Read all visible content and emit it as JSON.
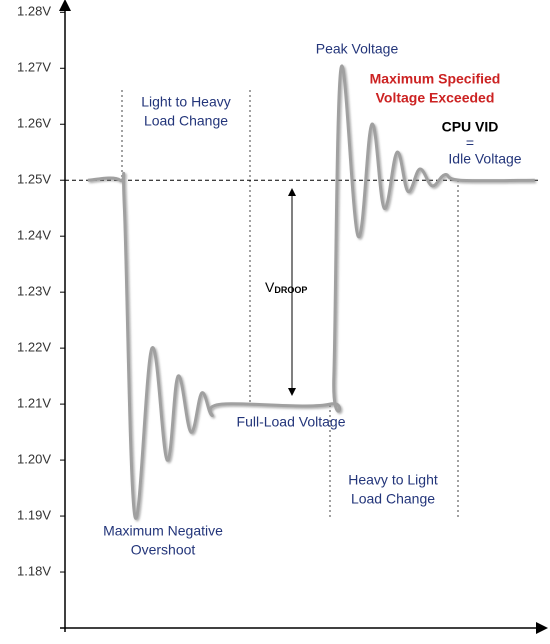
{
  "chart_data": {
    "type": "line",
    "x": [
      4.8,
      11.6,
      12.5,
      14.7,
      18.3,
      21.5,
      23.8,
      26.5,
      28.8,
      30.9,
      33,
      55.8,
      56.6,
      58.1,
      61.7,
      64.6,
      67.2,
      69.9,
      72.2,
      74.7,
      77.3,
      80,
      83.2,
      98.9
    ],
    "series": [
      {
        "color": "#a0a0a0",
        "values": [
          1.25,
          1.25,
          1.245,
          1.19,
          1.22,
          1.2,
          1.215,
          1.205,
          1.212,
          1.208,
          1.21,
          1.21,
          1.215,
          1.27,
          1.24,
          1.26,
          1.245,
          1.255,
          1.248,
          1.252,
          1.249,
          1.251,
          1.25,
          1.25
        ]
      }
    ],
    "xlim": [
      0,
      100
    ],
    "ylim": [
      1.17,
      1.28
    ],
    "yticks": [
      {
        "value": 1.18,
        "label": "1.18V"
      },
      {
        "value": 1.19,
        "label": "1.19V"
      },
      {
        "value": 1.2,
        "label": "1.20V"
      },
      {
        "value": 1.21,
        "label": "1.21V"
      },
      {
        "value": 1.22,
        "label": "1.22V"
      },
      {
        "value": 1.23,
        "label": "1.23V"
      },
      {
        "value": 1.24,
        "label": "1.24V"
      },
      {
        "value": 1.25,
        "label": "1.25V"
      },
      {
        "value": 1.26,
        "label": "1.26V"
      },
      {
        "value": 1.27,
        "label": "1.27V"
      },
      {
        "value": 1.28,
        "label": "1.28V"
      }
    ],
    "reference_line": 1.25,
    "annotations": [
      {
        "lines": [
          "Peak Voltage"
        ],
        "color": "#23357a"
      },
      {
        "lines": [
          "Maximum Specified",
          "Voltage Exceeded"
        ],
        "color": "#cc2222"
      },
      {
        "lines": [
          "CPU VID"
        ],
        "color": "#000000"
      },
      {
        "lines": [
          "=",
          "Idle Voltage"
        ],
        "color": "#23357a"
      },
      {
        "lines": [
          "Light to Heavy",
          "Load Change"
        ],
        "color": "#23357a"
      },
      {
        "lines": [
          "Full-Load Voltage"
        ],
        "color": "#23357a"
      },
      {
        "lines": [
          "Heavy to Light",
          "Load Change"
        ],
        "color": "#23357a"
      },
      {
        "lines": [
          "Maximum Negative",
          "Overshoot"
        ],
        "color": "#23357a"
      }
    ],
    "droop_label": {
      "text": "V",
      "subscript": "DROOP"
    }
  }
}
